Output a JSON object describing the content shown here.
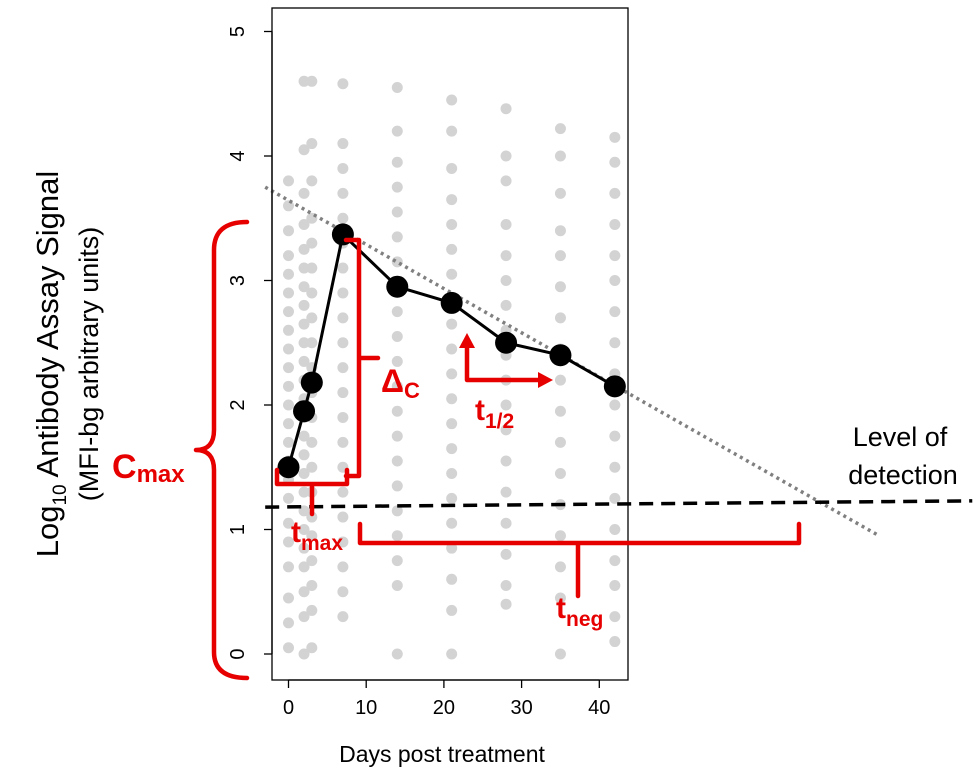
{
  "chart_data": {
    "type": "scatter",
    "xlabel": "Days post treatment",
    "ylabel": {
      "line1_main": "Log",
      "line1_sub": "10",
      "line1_rest": " Antibody Assay Signal",
      "line2": "(MFI-bg arbitrary units)"
    },
    "xlim": [
      -2,
      44
    ],
    "ylim": [
      -0.1,
      5.1
    ],
    "x_ticks": [
      0,
      10,
      20,
      30,
      40
    ],
    "y_ticks": [
      0,
      1,
      2,
      3,
      4,
      5
    ],
    "grid": false,
    "mean_series": {
      "x": [
        0,
        2,
        3,
        7,
        14,
        21,
        28,
        35,
        42
      ],
      "y": [
        1.5,
        1.95,
        2.18,
        3.37,
        2.95,
        2.82,
        2.5,
        2.4,
        2.15
      ]
    },
    "individual_points": [
      {
        "x": 0,
        "y": [
          0.05,
          0.25,
          0.45,
          0.7,
          0.9,
          1.05,
          1.25,
          1.4,
          1.55,
          1.7,
          1.85,
          2.0,
          2.15,
          2.3,
          2.45,
          2.6,
          2.75,
          2.9,
          3.05,
          3.2,
          3.4,
          3.6,
          3.8
        ]
      },
      {
        "x": 2,
        "y": [
          0.0,
          0.3,
          0.5,
          0.7,
          0.85,
          1.0,
          1.15,
          1.3,
          1.45,
          1.6,
          1.75,
          1.9,
          2.05,
          2.2,
          2.35,
          2.5,
          2.65,
          2.8,
          2.95,
          3.1,
          3.25,
          3.45,
          3.7,
          4.05,
          4.6
        ]
      },
      {
        "x": 3,
        "y": [
          0.05,
          0.35,
          0.55,
          0.75,
          0.95,
          1.1,
          1.3,
          1.5,
          1.7,
          1.9,
          2.1,
          2.3,
          2.5,
          2.7,
          2.9,
          3.1,
          3.3,
          3.5,
          3.8,
          4.1,
          4.6
        ]
      },
      {
        "x": 7,
        "y": [
          0.3,
          0.5,
          0.7,
          0.9,
          1.1,
          1.3,
          1.5,
          1.7,
          1.9,
          2.1,
          2.3,
          2.5,
          2.7,
          2.9,
          3.1,
          3.3,
          3.5,
          3.7,
          3.9,
          4.1,
          4.58
        ]
      },
      {
        "x": 14,
        "y": [
          0.0,
          0.55,
          0.75,
          0.95,
          1.15,
          1.35,
          1.55,
          1.75,
          1.95,
          2.15,
          2.35,
          2.55,
          2.75,
          2.95,
          3.15,
          3.35,
          3.55,
          3.75,
          3.95,
          4.2,
          4.55
        ]
      },
      {
        "x": 21,
        "y": [
          0.0,
          0.35,
          0.6,
          0.85,
          1.05,
          1.25,
          1.45,
          1.65,
          1.85,
          2.05,
          2.25,
          2.45,
          2.65,
          2.85,
          3.05,
          3.25,
          3.45,
          3.65,
          3.9,
          4.2,
          4.45
        ]
      },
      {
        "x": 28,
        "y": [
          0.4,
          0.55,
          0.8,
          1.05,
          1.3,
          1.55,
          1.8,
          2.0,
          2.2,
          2.4,
          2.6,
          2.8,
          3.0,
          3.2,
          3.45,
          3.8,
          4.0,
          4.38
        ]
      },
      {
        "x": 35,
        "y": [
          0.0,
          0.45,
          0.7,
          0.95,
          1.2,
          1.45,
          1.7,
          1.95,
          2.2,
          2.45,
          2.7,
          2.95,
          3.2,
          3.4,
          3.7,
          4.0,
          4.22
        ]
      },
      {
        "x": 42,
        "y": [
          0.1,
          0.3,
          0.55,
          0.75,
          1.0,
          1.25,
          1.5,
          1.75,
          2.0,
          2.25,
          2.5,
          2.75,
          3.0,
          3.2,
          3.45,
          3.7,
          3.95,
          4.15
        ]
      }
    ],
    "decay_line": {
      "x1": -3,
      "y1": 3.75,
      "x2": 76,
      "y2": 0.95
    },
    "detection_line": {
      "x1": -3,
      "y1": 1.18,
      "x2": 88,
      "y2": 1.23
    },
    "annotations": {
      "cmax": {
        "main": "C",
        "sub": "max"
      },
      "tmax": {
        "main": "t",
        "sub": "max"
      },
      "deltac": {
        "main": "Δ",
        "sub": "C"
      },
      "thalf": {
        "main": "t",
        "sub": "1/2"
      },
      "tneg": {
        "main": "t",
        "sub": "neg"
      },
      "lod_line1": "Level of",
      "lod_line2": "detection"
    },
    "colors": {
      "annotation": "#e60000",
      "points": "#d3d3d3",
      "mean_line": "#000000",
      "decay_line": "#808080"
    }
  }
}
